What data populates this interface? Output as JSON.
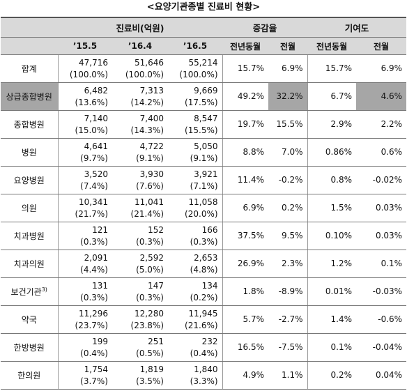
{
  "title": "<요양기관종별 진료비 현황>",
  "table": {
    "header_top": [
      "진료비(억원)",
      "증감율",
      "기여도"
    ],
    "header_sub": [
      "’15.5",
      "’16.4",
      "’16.5",
      "전년동월",
      "전월",
      "전년동월",
      "전월"
    ],
    "highlight_color": "#a6a6a6",
    "rows": [
      {
        "name": "합계",
        "costs": [
          {
            "value": "47,716",
            "share": "(100.0%)"
          },
          {
            "value": "51,646",
            "share": "(100.0%)"
          },
          {
            "value": "55,214",
            "share": "(100.0%)"
          }
        ],
        "growth": [
          "15.7%",
          "6.9%"
        ],
        "contrib": [
          "15.7%",
          "6.9%"
        ]
      },
      {
        "name": "상급종합병원",
        "highlight": [
          "name",
          "growth.1",
          "contrib.1"
        ],
        "costs": [
          {
            "value": "6,482",
            "share": "(13.6%)"
          },
          {
            "value": "7,313",
            "share": "(14.2%)"
          },
          {
            "value": "9,669",
            "share": "(17.5%)"
          }
        ],
        "growth": [
          "49.2%",
          "32.2%"
        ],
        "contrib": [
          "6.7%",
          "4.6%"
        ]
      },
      {
        "name": "종합병원",
        "costs": [
          {
            "value": "7,140",
            "share": "(15.0%)"
          },
          {
            "value": "7,400",
            "share": "(14.3%)"
          },
          {
            "value": "8,547",
            "share": "(15.5%)"
          }
        ],
        "growth": [
          "19.7%",
          "15.5%"
        ],
        "contrib": [
          "2.9%",
          "2.2%"
        ]
      },
      {
        "name": "병원",
        "costs": [
          {
            "value": "4,641",
            "share": "(9.7%)"
          },
          {
            "value": "4,722",
            "share": "(9.1%)"
          },
          {
            "value": "5,050",
            "share": "(9.1%)"
          }
        ],
        "growth": [
          "8.8%",
          "7.0%"
        ],
        "contrib": [
          "0.86%",
          "0.6%"
        ]
      },
      {
        "name": "요양병원",
        "costs": [
          {
            "value": "3,520",
            "share": "(7.4%)"
          },
          {
            "value": "3,930",
            "share": "(7.6%)"
          },
          {
            "value": "3,921",
            "share": "(7.1%)"
          }
        ],
        "growth": [
          "11.4%",
          "-0.2%"
        ],
        "contrib": [
          "0.8%",
          "-0.02%"
        ]
      },
      {
        "name": "의원",
        "costs": [
          {
            "value": "10,341",
            "share": "(21.7%)"
          },
          {
            "value": "11,041",
            "share": "(21.4%)"
          },
          {
            "value": "11,058",
            "share": "(20.0%)"
          }
        ],
        "growth": [
          "6.9%",
          "0.2%"
        ],
        "contrib": [
          "1.5%",
          "0.03%"
        ]
      },
      {
        "name": "치과병원",
        "costs": [
          {
            "value": "121",
            "share": "(0.3%)"
          },
          {
            "value": "152",
            "share": "(0.3%)"
          },
          {
            "value": "166",
            "share": "(0.3%)"
          }
        ],
        "growth": [
          "37.5%",
          "9.5%"
        ],
        "contrib": [
          "0.10%",
          "0.03%"
        ]
      },
      {
        "name": "치과의원",
        "costs": [
          {
            "value": "2,091",
            "share": "(4.4%)"
          },
          {
            "value": "2,592",
            "share": "(5.0%)"
          },
          {
            "value": "2,653",
            "share": "(4.8%)"
          }
        ],
        "growth": [
          "26.9%",
          "2.3%"
        ],
        "contrib": [
          "1.2%",
          "0.1%"
        ]
      },
      {
        "name": "보건기관",
        "note": "3)",
        "costs": [
          {
            "value": "131",
            "share": "(0.3%)"
          },
          {
            "value": "147",
            "share": "(0.3%)"
          },
          {
            "value": "134",
            "share": "(0.2%)"
          }
        ],
        "growth": [
          "1.8%",
          "-8.9%"
        ],
        "contrib": [
          "0.01%",
          "-0.03%"
        ]
      },
      {
        "name": "약국",
        "costs": [
          {
            "value": "11,296",
            "share": "(23.7%)"
          },
          {
            "value": "12,280",
            "share": "(23.8%)"
          },
          {
            "value": "11,945",
            "share": "(21.6%)"
          }
        ],
        "growth": [
          "5.7%",
          "-2.7%"
        ],
        "contrib": [
          "1.4%",
          "-0.6%"
        ]
      },
      {
        "name": "한방병원",
        "costs": [
          {
            "value": "199",
            "share": "(0.4%)"
          },
          {
            "value": "251",
            "share": "(0.5%)"
          },
          {
            "value": "232",
            "share": "(0.4%)"
          }
        ],
        "growth": [
          "16.5%",
          "-7.5%"
        ],
        "contrib": [
          "0.1%",
          "-0.04%"
        ]
      },
      {
        "name": "한의원",
        "costs": [
          {
            "value": "1,754",
            "share": "(3.7%)"
          },
          {
            "value": "1,819",
            "share": "(3.5%)"
          },
          {
            "value": "1,840",
            "share": "(3.3%)"
          }
        ],
        "growth": [
          "4.9%",
          "1.1%"
        ],
        "contrib": [
          "0.2%",
          "0.04%"
        ]
      }
    ]
  }
}
